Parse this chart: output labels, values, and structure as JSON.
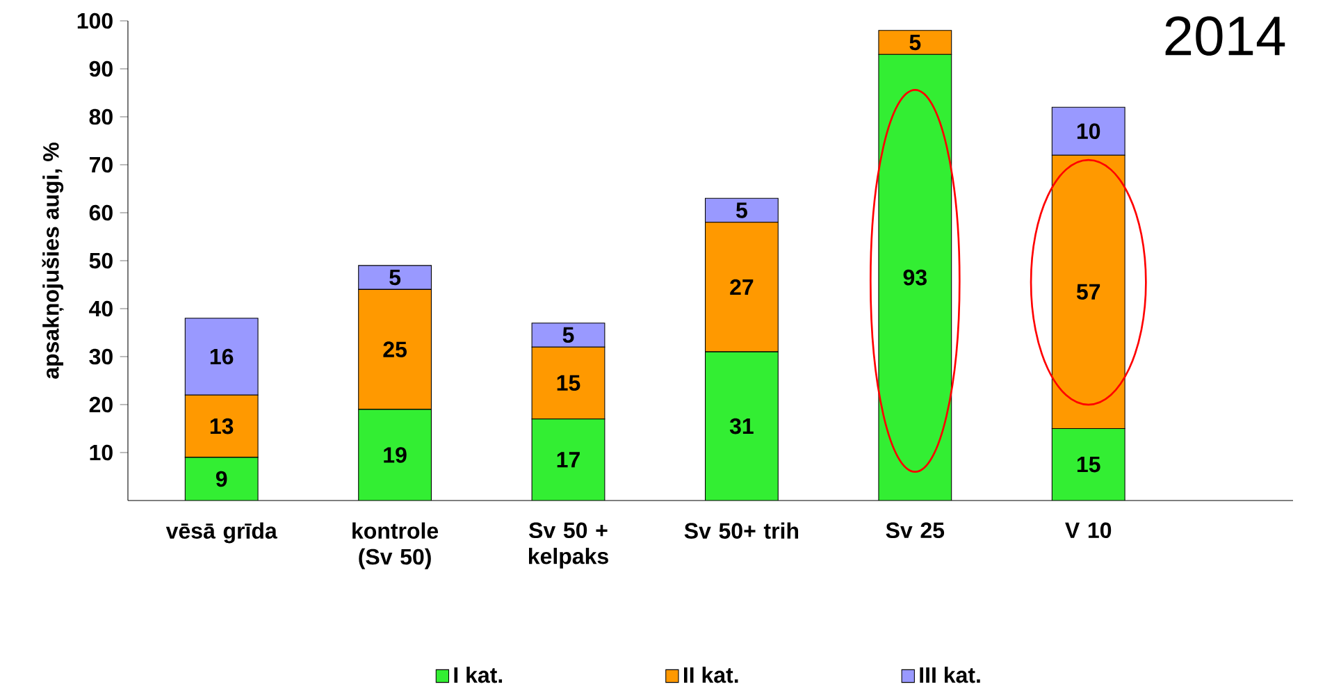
{
  "chart_data": {
    "type": "bar",
    "stacked": true,
    "title": "2014",
    "ylabel": "apsakņojušies augi, %",
    "categories": [
      "vēsā grīda",
      "kontrole (Sv 50)",
      "Sv 50 + kelpaks",
      "Sv 50+ trih",
      "Sv 25",
      "V 10"
    ],
    "series": [
      {
        "name": "I kat.",
        "color": "#33ee33",
        "values": [
          9,
          19,
          17,
          31,
          93,
          15
        ]
      },
      {
        "name": "II kat.",
        "color": "#ff9900",
        "values": [
          13,
          25,
          15,
          27,
          5,
          57
        ]
      },
      {
        "name": "III kat.",
        "color": "#9999ff",
        "values": [
          16,
          5,
          5,
          5,
          null,
          10
        ]
      }
    ],
    "ylim": [
      0,
      100
    ],
    "yticks": [
      10,
      20,
      30,
      40,
      50,
      60,
      70,
      80,
      90,
      100
    ],
    "data_labels": true,
    "legend": "bottom",
    "grid": false
  }
}
